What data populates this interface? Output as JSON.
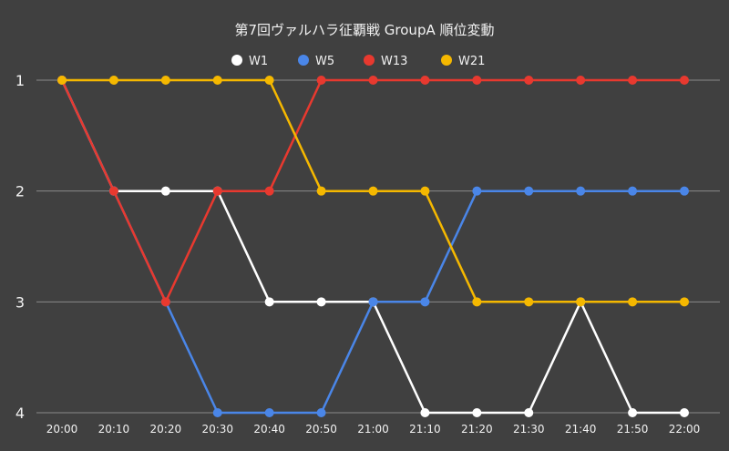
{
  "chart_data": {
    "type": "line",
    "title": "第7回ヴァルハラ征覇戦 GroupA 順位変動",
    "categories": [
      "20:00",
      "20:10",
      "20:20",
      "20:30",
      "20:40",
      "20:50",
      "21:00",
      "21:10",
      "21:20",
      "21:30",
      "21:40",
      "21:50",
      "22:00"
    ],
    "y_ticks": [
      "1",
      "2",
      "3",
      "4"
    ],
    "ylim": [
      1,
      4
    ],
    "y_inverted": true,
    "grid": "horizontal",
    "legend_position": "top",
    "series": [
      {
        "name": "W1",
        "color": "#ffffff",
        "values": [
          1,
          2,
          2,
          2,
          3,
          3,
          3,
          4,
          4,
          4,
          3,
          4,
          4
        ]
      },
      {
        "name": "W5",
        "color": "#4a86e8",
        "values": [
          1,
          2,
          3,
          4,
          4,
          4,
          3,
          3,
          2,
          2,
          2,
          2,
          2
        ]
      },
      {
        "name": "W13",
        "color": "#e8392f",
        "values": [
          1,
          2,
          3,
          2,
          2,
          1,
          1,
          1,
          1,
          1,
          1,
          1,
          1
        ]
      },
      {
        "name": "W21",
        "color": "#f5b800",
        "values": [
          1,
          1,
          1,
          1,
          1,
          2,
          2,
          2,
          3,
          3,
          3,
          3,
          3
        ]
      }
    ]
  }
}
